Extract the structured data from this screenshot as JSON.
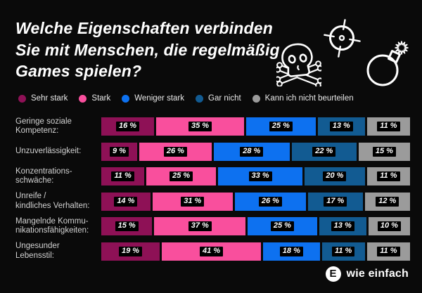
{
  "title": {
    "lines": [
      "Welche Eigenschaften verbinden",
      "Sie mit Menschen, die regelmäßig",
      "Games spielen?"
    ]
  },
  "icons": [
    "skull-crossbones",
    "crosshair",
    "bomb"
  ],
  "colors": {
    "background": "#0a0a0a",
    "badge": "#000000",
    "title_text": "#ffffff",
    "category_text": "#d2d2d2",
    "sehr_stark": "#8e1156",
    "stark": "#f94f9d",
    "weniger_stark": "#0d71f0",
    "gar_nicht": "#125b92",
    "kann_ich_nicht_beurteilen": "#9b9b9b"
  },
  "chart_data": {
    "type": "bar",
    "stacked": true,
    "orientation": "horizontal",
    "unit": "%",
    "value_suffix": " %",
    "xlim": [
      0,
      100
    ],
    "grid": false,
    "legend_position": "top",
    "title": "Welche Eigenschaften verbinden Sie mit Menschen, die regelmäßig Games spielen?",
    "categories": [
      [
        "Geringe soziale",
        "Kompetenz:"
      ],
      [
        "Unzuverlässigkeit:"
      ],
      [
        "Konzentrations-",
        "schwäche:"
      ],
      [
        "Unreife /",
        "kindliches Verhalten:"
      ],
      [
        "Mangelnde Kommu-",
        "nikationsfähigkeiten:"
      ],
      [
        "Ungesunder",
        "Lebensstil:"
      ]
    ],
    "series": [
      {
        "name": "Sehr stark",
        "color": "#8e1156",
        "values": [
          16,
          9,
          11,
          14,
          15,
          19
        ]
      },
      {
        "name": "Stark",
        "color": "#f94f9d",
        "values": [
          35,
          26,
          25,
          31,
          37,
          41
        ]
      },
      {
        "name": "Weniger stark",
        "color": "#0d71f0",
        "values": [
          25,
          28,
          33,
          26,
          25,
          18
        ]
      },
      {
        "name": "Gar nicht",
        "color": "#125b92",
        "values": [
          13,
          22,
          20,
          17,
          13,
          11
        ]
      },
      {
        "name": "Kann ich nicht beurteilen",
        "color": "#9b9b9b",
        "values": [
          11,
          15,
          11,
          12,
          10,
          11
        ]
      }
    ]
  },
  "footer": {
    "logo_letter": "E",
    "logo_text": "wie einfach"
  }
}
